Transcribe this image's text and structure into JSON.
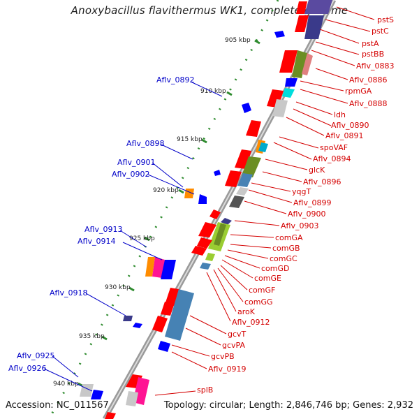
{
  "title": "Anoxybacillus flavithermus WK1, complete genome",
  "accession": "Accession: NC_011567",
  "topology": "Topology: circular; Length: 2,846,746 bp; Genes: 2,932",
  "ticks": [
    "905 kbp",
    "910 kbp",
    "915 kbp",
    "920 kbp",
    "925 kbp",
    "930 kbp",
    "935 kbp",
    "940 kbp"
  ],
  "right_labels": [
    "pstS",
    "pstC",
    "pstA",
    "pstBB",
    "Aflv_0883",
    "Aflv_0886",
    "rpmGA",
    "Aflv_0888",
    "ldh",
    "Aflv_0890",
    "Aflv_0891",
    "spoVAF",
    "Aflv_0894",
    "glcK",
    "Aflv_0896",
    "yqgT",
    "Aflv_0899",
    "Aflv_0900",
    "Aflv_0903",
    "comGA",
    "comGB",
    "comGC",
    "comGD",
    "comGE",
    "comGF",
    "comGG",
    "aroK",
    "Aflv_0912",
    "gcvT",
    "gcvPA",
    "gcvPB",
    "Aflv_0919",
    "splB"
  ],
  "left_labels": [
    "Aflv_0892",
    "Aflv_0898",
    "Aflv_0901",
    "Aflv_0902",
    "Aflv_0913",
    "Aflv_0914",
    "Aflv_0918",
    "Aflv_0925",
    "Aflv_0926"
  ],
  "colors": {
    "backbone": "#9a9a9a",
    "forward_gene": "#ff0000",
    "reverse_gene": "#0000ff",
    "label_red": "#d40000",
    "label_blue": "#0000c8",
    "tick_dots": "#2e8b2e"
  }
}
